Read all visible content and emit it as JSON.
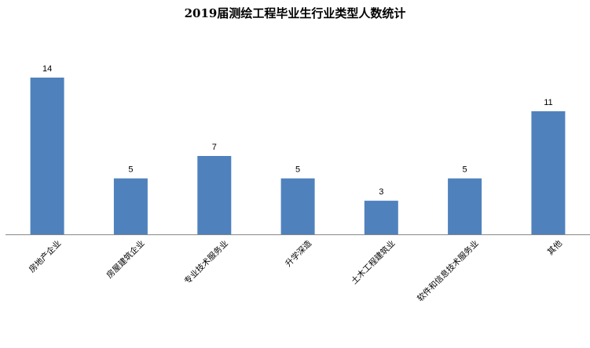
{
  "chart_data": {
    "type": "bar",
    "title": "2019届测绘工程毕业生行业类型人数统计",
    "categories": [
      "房地产企业",
      "房屋建筑企业",
      "专业技术服务业",
      "升学深造",
      "土木工程建筑业",
      "软件和信息技术服务业",
      "其他"
    ],
    "values": [
      14,
      5,
      7,
      5,
      3,
      5,
      11
    ],
    "ylim": [
      0,
      14
    ],
    "grid": false,
    "legend": "none",
    "bar_color": "#4F81BD"
  }
}
